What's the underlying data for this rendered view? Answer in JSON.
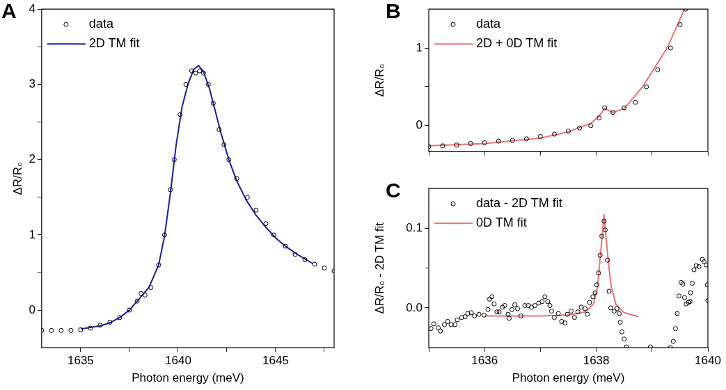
{
  "chart_data": [
    {
      "type": "scatter",
      "title": "A",
      "xlabel": "Photon energy (meV)",
      "ylabel": "ΔR/R₀",
      "xlim": [
        1633,
        1648
      ],
      "ylim": [
        -0.5,
        4
      ],
      "xticks": [
        1635,
        {
          "value": 1637.5,
          "label": null
        },
        1640,
        {
          "value": 1642.5,
          "label": null
        },
        1645,
        {
          "value": 1647.5,
          "label": null
        }
      ],
      "yticks": [
        0,
        {
          "value": 0.5,
          "label": null
        },
        1,
        {
          "value": 1.5,
          "label": null
        },
        2,
        {
          "value": 2.5,
          "label": null
        },
        3,
        {
          "value": 3.5,
          "label": null
        },
        4
      ],
      "grid": false,
      "legend": "top left",
      "series": [
        {
          "name": "data",
          "type": "scatter",
          "marker": "circle",
          "color": "#000000",
          "x": [
            1633,
            1633.5,
            1634,
            1634.5,
            1635,
            1635.5,
            1636,
            1636.5,
            1637,
            1637.5,
            1637.9,
            1638.1,
            1638.3,
            1638.6,
            1639,
            1639.3,
            1639.6,
            1639.8,
            1640.1,
            1640.4,
            1640.7,
            1640.9,
            1641.1,
            1641.3,
            1641.55,
            1641.8,
            1642.1,
            1642.35,
            1642.6,
            1643,
            1643.55,
            1644,
            1644.5,
            1644.9,
            1645.5,
            1646,
            1646.5,
            1647,
            1647.5,
            1648
          ],
          "values": [
            -0.27,
            -0.27,
            -0.27,
            -0.27,
            -0.26,
            -0.24,
            -0.2,
            -0.16,
            -0.1,
            0.0,
            0.12,
            0.22,
            0.2,
            0.3,
            0.6,
            1.0,
            1.6,
            2.0,
            2.6,
            3.0,
            3.18,
            3.15,
            3.18,
            3.15,
            3.0,
            2.75,
            2.4,
            2.2,
            2.0,
            1.75,
            1.5,
            1.33,
            1.15,
            1.0,
            0.85,
            0.74,
            0.67,
            0.61,
            0.56,
            0.52
          ]
        },
        {
          "name": "2D TM fit",
          "type": "line",
          "color": "#1a1aa6",
          "x": [
            1635,
            1636,
            1636.5,
            1637,
            1637.5,
            1638,
            1638.5,
            1639,
            1639.3,
            1639.6,
            1639.9,
            1640.2,
            1640.5,
            1640.8,
            1641.05,
            1641.3,
            1641.6,
            1641.9,
            1642.2,
            1642.6,
            1643,
            1643.5,
            1644,
            1644.5,
            1645,
            1645.5,
            1646,
            1646.5,
            1646.9
          ],
          "values": [
            -0.25,
            -0.21,
            -0.17,
            -0.1,
            0.0,
            0.15,
            0.3,
            0.6,
            0.98,
            1.55,
            2.2,
            2.7,
            3.0,
            3.2,
            3.25,
            3.17,
            2.95,
            2.65,
            2.35,
            2.0,
            1.72,
            1.46,
            1.26,
            1.1,
            0.96,
            0.85,
            0.76,
            0.68,
            0.62
          ]
        }
      ]
    },
    {
      "type": "scatter",
      "title": "B",
      "ylabel": "ΔR/R₀",
      "xlim": [
        1635,
        1640
      ],
      "ylim": [
        -0.33,
        1.5
      ],
      "xticks": [
        {
          "value": 1635,
          "label": null
        },
        {
          "value": 1636,
          "label": null
        },
        {
          "value": 1637,
          "label": null
        },
        {
          "value": 1638,
          "label": null
        },
        {
          "value": 1639,
          "label": null
        },
        {
          "value": 1640,
          "label": null
        }
      ],
      "yticks": [
        0,
        {
          "value": 0.5,
          "label": null
        },
        1
      ],
      "tick_labels": "y",
      "grid": false,
      "legend": "top left",
      "series": [
        {
          "name": "data",
          "type": "scatter",
          "marker": "circle",
          "color": "#000000",
          "x": [
            1635,
            1635.25,
            1635.5,
            1635.75,
            1636,
            1636.25,
            1636.5,
            1636.75,
            1637,
            1637.25,
            1637.5,
            1637.7,
            1637.9,
            1638.05,
            1638.15,
            1638.3,
            1638.5,
            1638.7,
            1638.9,
            1639.1,
            1639.33,
            1639.5,
            1639.6
          ],
          "values": [
            -0.27,
            -0.26,
            -0.25,
            -0.23,
            -0.22,
            -0.2,
            -0.19,
            -0.17,
            -0.14,
            -0.11,
            -0.07,
            -0.03,
            0.0,
            0.1,
            0.23,
            0.17,
            0.23,
            0.3,
            0.5,
            0.72,
            1.0,
            1.3,
            1.5
          ]
        },
        {
          "name": "2D + 0D TM fit",
          "type": "line",
          "color": "#f07070",
          "x": [
            1635,
            1636,
            1637,
            1637.5,
            1637.9,
            1638.05,
            1638.15,
            1638.3,
            1638.5,
            1638.83,
            1639.27,
            1639.58
          ],
          "values": [
            -0.26,
            -0.23,
            -0.16,
            -0.08,
            0.03,
            0.12,
            0.22,
            0.17,
            0.22,
            0.5,
            1.0,
            1.5
          ]
        }
      ]
    },
    {
      "type": "scatter",
      "title": "C",
      "xlabel": "Photon energy (meV)",
      "ylabel": "ΔR/R₀ - 2D TM fit",
      "xlim": [
        1635,
        1640
      ],
      "ylim": [
        -0.05,
        0.15
      ],
      "xticks": [
        {
          "value": 1635,
          "label": null
        },
        1636,
        {
          "value": 1637,
          "label": null
        },
        1638,
        {
          "value": 1639,
          "label": null
        },
        1640
      ],
      "yticks": [
        {
          "value": 0,
          "label": "0.0"
        },
        {
          "value": 0.05,
          "label": null
        },
        {
          "value": 0.1,
          "label": "0.1"
        }
      ],
      "grid": false,
      "legend": "top left",
      "series": [
        {
          "name": "data - 2D TM fit",
          "type": "scatter",
          "marker": "circle",
          "color": "#000000",
          "x": [
            1635.04,
            1635.09,
            1635.17,
            1635.21,
            1635.28,
            1635.34,
            1635.4,
            1635.47,
            1635.51,
            1635.59,
            1635.65,
            1635.7,
            1635.76,
            1635.82,
            1635.9,
            1635.99,
            1636.06,
            1636.09,
            1636.13,
            1636.17,
            1636.22,
            1636.26,
            1636.32,
            1636.36,
            1636.42,
            1636.44,
            1636.49,
            1636.54,
            1636.59,
            1636.65,
            1636.72,
            1636.78,
            1636.84,
            1636.9,
            1636.97,
            1637.03,
            1637.08,
            1637.13,
            1637.17,
            1637.2,
            1637.25,
            1637.32,
            1637.38,
            1637.44,
            1637.48,
            1637.55,
            1637.61,
            1637.67,
            1637.73,
            1637.8,
            1637.84,
            1637.88,
            1637.94,
            1637.98,
            1638.01,
            1638.04,
            1638.07,
            1638.1,
            1638.14,
            1638.16,
            1638.2,
            1638.23,
            1638.26,
            1638.32,
            1638.37,
            1638.41,
            1638.43,
            1638.46,
            1638.5,
            1638.54,
            1638.97,
            1639.33,
            1639.38,
            1639.42,
            1639.45,
            1639.48,
            1639.52,
            1639.55,
            1639.58,
            1639.61,
            1639.65,
            1639.68,
            1639.69,
            1639.72,
            1639.75,
            1639.79,
            1639.84,
            1639.9,
            1639.93,
            1639.97,
            1639.99,
            1640
          ],
          "values": [
            -0.026,
            -0.02,
            -0.025,
            -0.029,
            -0.021,
            -0.017,
            -0.021,
            -0.021,
            -0.015,
            -0.012,
            -0.011,
            -0.007,
            -0.006,
            -0.01,
            -0.008,
            -0.009,
            -0.002,
            0.011,
            0.014,
            0.005,
            -0.005,
            -0.005,
            0.001,
            0.003,
            -0.008,
            -0.013,
            -0.002,
            0.004,
            -0.001,
            -0.01,
            0.003,
            0.003,
            0.001,
            0.003,
            0.006,
            0.008,
            0.014,
            0.008,
            0.003,
            -0.004,
            -0.012,
            -0.007,
            -0.017,
            -0.019,
            -0.008,
            -0.004,
            -0.012,
            -0.005,
            0.001,
            -0.001,
            -0.008,
            0.007,
            0.014,
            0.019,
            0.029,
            0.044,
            0.066,
            0.09,
            0.109,
            0.098,
            0.06,
            0.021,
            0.0,
            -0.004,
            -0.001,
            -0.007,
            -0.018,
            -0.03,
            -0.039,
            -0.049,
            -0.049,
            -0.05,
            -0.042,
            -0.026,
            -0.007,
            0.015,
            0.032,
            0.03,
            0.013,
            0.005,
            0.007,
            0.008,
            0.019,
            0.031,
            0.048,
            0.053,
            0.052,
            0.061,
            0.058,
            0.054,
            0.029,
            0.009
          ]
        },
        {
          "name": "0D TM fit",
          "type": "line",
          "color": "#f07070",
          "x": [
            1636,
            1637,
            1637.5,
            1637.8,
            1637.95,
            1638.02,
            1638.08,
            1638.14,
            1638.2,
            1638.26,
            1638.35,
            1638.5,
            1638.75
          ],
          "values": [
            -0.01,
            -0.01,
            -0.009,
            -0.005,
            0.005,
            0.025,
            0.07,
            0.117,
            0.07,
            0.03,
            0.005,
            -0.006,
            -0.011
          ]
        }
      ]
    }
  ]
}
